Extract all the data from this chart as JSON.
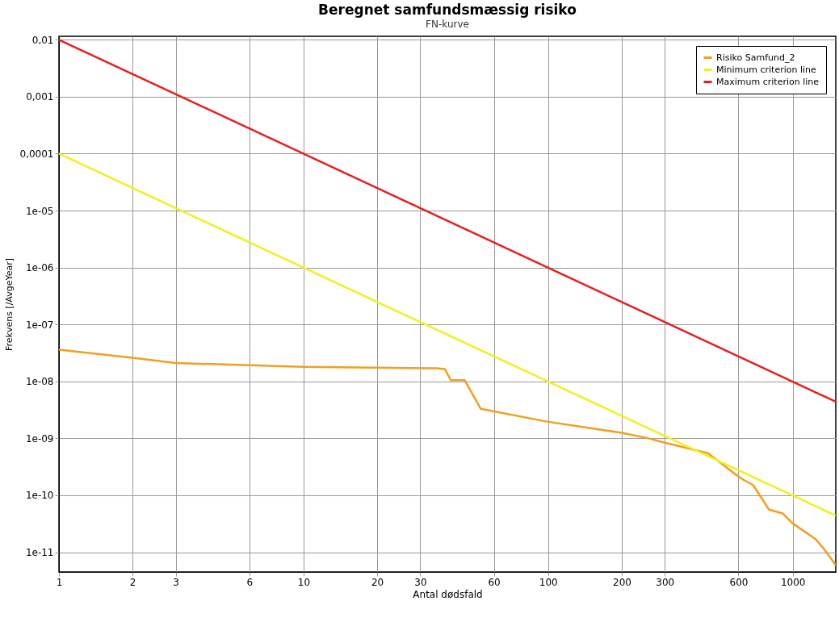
{
  "chart_data": {
    "type": "line",
    "title": "Beregnet samfundsmæssig risiko",
    "subtitle": "FN-kurve",
    "xlabel": "Antal dødsfald",
    "ylabel": "Frekvens [/AvgeYear]",
    "log": "xy",
    "grid": true,
    "legend": "top right",
    "line_style": "solid",
    "marker": "none",
    "xlim": [
      1,
      1500
    ],
    "ylim": [
      4.5e-12,
      0.0115
    ],
    "xticks": [
      1,
      2,
      3,
      6,
      10,
      20,
      30,
      60,
      100,
      200,
      300,
      600,
      1000
    ],
    "yticks": [
      {
        "value": 0.01,
        "label": "0,01"
      },
      {
        "value": 0.001,
        "label": "0,001"
      },
      {
        "value": 0.0001,
        "label": "0,0001"
      },
      {
        "value": 1e-05,
        "label": "1e-05"
      },
      {
        "value": 1e-06,
        "label": "1e-06"
      },
      {
        "value": 1e-07,
        "label": "1e-07"
      },
      {
        "value": 1e-08,
        "label": "1e-08"
      },
      {
        "value": 1e-09,
        "label": "1e-09"
      },
      {
        "value": 1e-10,
        "label": "1e-10"
      },
      {
        "value": 1e-11,
        "label": "1e-11"
      }
    ],
    "series": [
      {
        "name": "Risiko Samfund_2",
        "color": "#f0a020",
        "x": [
          1,
          2,
          3,
          10,
          35,
          37.8,
          40,
          45.6,
          53,
          100,
          200,
          257,
          300,
          450,
          578,
          625,
          690,
          800,
          910,
          1000,
          1240,
          1340,
          1440,
          1500
        ],
        "values": [
          3.6e-08,
          2.6e-08,
          2.1e-08,
          1.8e-08,
          1.7e-08,
          1.65e-08,
          1.05e-08,
          1.05e-08,
          3.3e-09,
          1.95e-09,
          1.25e-09,
          1e-09,
          8.4e-10,
          5.5e-10,
          2.4e-10,
          1.9e-10,
          1.5e-10,
          5.6e-11,
          4.8e-11,
          3.2e-11,
          1.7e-11,
          1.15e-11,
          7.6e-12,
          5.9e-12
        ]
      },
      {
        "name": "Minimum criterion line",
        "color": "#f0f020",
        "x": [
          1,
          1500
        ],
        "values": [
          0.0001,
          4.4e-11
        ]
      },
      {
        "name": "Maximum criterion line",
        "color": "#e62020",
        "x": [
          1,
          1500
        ],
        "values": [
          0.01,
          4.4e-09
        ]
      }
    ]
  }
}
